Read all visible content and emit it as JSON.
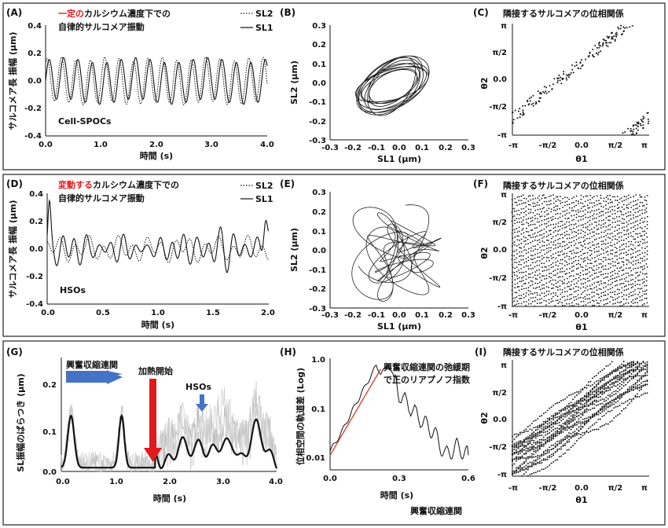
{
  "figure": {
    "panels": {
      "A": {
        "label": "(A)",
        "title_red": "一定の",
        "title_rest": "カルシウム濃度下での",
        "title_line2": "自律的サルコメア振動",
        "legend": [
          "SL2",
          "SL1"
        ],
        "ylabel": "サルコメア長 振幅 (μm)",
        "xlabel": "時間 (s)",
        "annotation": "Cell-SPOCs",
        "yticks": [
          "0.4",
          "0.2",
          "0.0",
          "-0.2",
          "-0.4"
        ],
        "xticks": [
          "0.0",
          "1.0",
          "2.0",
          "3.0",
          "4.0"
        ]
      },
      "B": {
        "label": "(B)",
        "ylabel": "SL2 (μm)",
        "xlabel": "SL1 (μm)",
        "yticks": [
          "0.3",
          "0.2",
          "0.1",
          "0.0",
          "-0.1",
          "-0.2",
          "-0.3"
        ],
        "xticks": [
          "-0.3",
          "-0.2",
          "-0.1",
          "0.0",
          "0.1",
          "0.2",
          "0.3"
        ]
      },
      "C": {
        "label": "(C)",
        "title": "隣接するサルコメアの位相関係",
        "ylabel": "θ2",
        "xlabel": "θ1",
        "yticks": [
          "π",
          "π/2",
          "0.0",
          "-π/2",
          "-π"
        ],
        "xticks": [
          "-π",
          "-π/2",
          "0.0",
          "π/2",
          "π"
        ]
      },
      "D": {
        "label": "(D)",
        "title_red": "変動する",
        "title_rest": "カルシウム濃度下での",
        "title_line2": "自律的サルコメア振動",
        "legend": [
          "SL2",
          "SL1"
        ],
        "ylabel": "サルコメア長 振幅 (μm)",
        "xlabel": "時間 (s)",
        "annotation": "HSOs",
        "yticks": [
          "0.4",
          "0.2",
          "0.0",
          "-0.2",
          "-0.4"
        ],
        "xticks": [
          "0.0",
          "0.5",
          "1.0",
          "1.5",
          "2.0"
        ]
      },
      "E": {
        "label": "(E)",
        "ylabel": "SL2 (μm)",
        "xlabel": "SL1 (μm)",
        "yticks": [
          "0.3",
          "0.2",
          "0.1",
          "0.0",
          "-0.1",
          "-0.2",
          "-0.3"
        ],
        "xticks": [
          "-0.3",
          "-0.2",
          "-0.1",
          "0.0",
          "0.1",
          "0.2",
          "0.3"
        ]
      },
      "F": {
        "label": "(F)",
        "title": "隣接するサルコメアの位相関係",
        "ylabel": "θ2",
        "xlabel": "θ1",
        "yticks": [
          "π",
          "π/2",
          "0.0",
          "-π/2",
          "-π"
        ],
        "xticks": [
          "-π",
          "-π/2",
          "0.0",
          "π/2",
          "π"
        ]
      },
      "G": {
        "label": "(G)",
        "ylabel": "SL振幅のばらつき (μm)",
        "xlabel": "時間 (s)",
        "annot_ecc": "興奮収縮連関",
        "annot_heat": "加熱開始",
        "annot_hso": "HSOs",
        "yticks": [
          "0.2",
          "0.1",
          "0.0"
        ],
        "xticks": [
          "0.0",
          "1.0",
          "2.0",
          "3.0",
          "4.0"
        ]
      },
      "H": {
        "label": "(H)",
        "ylabel": "位相空間の軌道差 (Log)",
        "xlabel": "時間 (s)",
        "annot_line1": "興奮収縮連関の弛緩期",
        "annot_line2": "で正のリアプノフ指数",
        "caption": "興奮収縮連関",
        "yticks": [
          "1.0",
          "0.1",
          "0.01"
        ],
        "xticks": [
          "0.0",
          "0.3",
          "0.6"
        ]
      },
      "I": {
        "label": "(I)",
        "title": "隣接するサルコメアの位相関係",
        "ylabel": "θ2",
        "xlabel": "θ1",
        "yticks": [
          "π",
          "π/2",
          "0.0",
          "-π/2",
          "-π"
        ],
        "xticks": [
          "-π",
          "-π/2",
          "0.0",
          "π/2",
          "π"
        ]
      }
    },
    "colors": {
      "accent_red": "#e0191f",
      "arrow_blue": "#4472c4",
      "line_dark": "#111111",
      "trace_gray": "#bdbdbd",
      "fit_red": "#d9352a"
    }
  },
  "chart_data": [
    {
      "id": "A",
      "type": "line",
      "xlabel": "時間 (s)",
      "ylabel": "サルコメア長 振幅 (μm)",
      "xlim": [
        0,
        4.0
      ],
      "ylim": [
        -0.4,
        0.4
      ],
      "grid": false,
      "legend": "top-right",
      "series": [
        {
          "name": "SL1",
          "style": "solid",
          "approx_period_s": 0.26,
          "approx_amplitude": 0.16
        },
        {
          "name": "SL2",
          "style": "dotted",
          "approx_period_s": 0.26,
          "approx_amplitude": 0.16
        }
      ]
    },
    {
      "id": "B",
      "type": "line",
      "xlabel": "SL1 (μm)",
      "ylabel": "SL2 (μm)",
      "xlim": [
        -0.3,
        0.3
      ],
      "ylim": [
        -0.3,
        0.3
      ],
      "shape": "closed quasi-elliptic limit cycle"
    },
    {
      "id": "C",
      "type": "scatter",
      "xlabel": "θ1",
      "ylabel": "θ2",
      "xlim": [
        "-π",
        "π"
      ],
      "ylim": [
        "-π",
        "π"
      ],
      "pattern": "diagonal band (phase locked)"
    },
    {
      "id": "D",
      "type": "line",
      "xlabel": "時間 (s)",
      "ylabel": "サルコメア長 振幅 (μm)",
      "xlim": [
        0,
        2.0
      ],
      "ylim": [
        -0.4,
        0.4
      ],
      "legend": "top-right",
      "series": [
        {
          "name": "SL1",
          "style": "solid"
        },
        {
          "name": "SL2",
          "style": "dotted"
        }
      ]
    },
    {
      "id": "E",
      "type": "line",
      "xlabel": "SL1 (μm)",
      "ylabel": "SL2 (μm)",
      "xlim": [
        -0.3,
        0.3
      ],
      "ylim": [
        -0.3,
        0.3
      ],
      "shape": "chaotic tangle"
    },
    {
      "id": "F",
      "type": "scatter",
      "xlabel": "θ1",
      "ylabel": "θ2",
      "xlim": [
        "-π",
        "π"
      ],
      "ylim": [
        "-π",
        "π"
      ],
      "pattern": "dense diagonal streaks"
    },
    {
      "id": "G",
      "type": "line",
      "xlabel": "時間 (s)",
      "ylabel": "SL振幅のばらつき (μm)",
      "xlim": [
        0,
        4.0
      ],
      "ylim": [
        0,
        0.25
      ],
      "series": [
        {
          "name": "mean",
          "style": "solid-black",
          "peaks": [
            [
              0.18,
              0.12
            ],
            [
              1.12,
              0.12
            ],
            [
              2.6,
              0.08
            ],
            [
              3.6,
              0.08
            ]
          ]
        },
        {
          "name": "individual",
          "style": "gray",
          "max": 0.23
        }
      ],
      "markers": [
        {
          "label": "加熱開始",
          "x": 1.7
        },
        {
          "label": "HSOs",
          "x": 2.6
        }
      ]
    },
    {
      "id": "H",
      "type": "line",
      "xlabel": "時間 (s)",
      "ylabel": "位相空間の軌道差 (Log)",
      "xlim": [
        0,
        0.6
      ],
      "ylim": [
        0.005,
        1.0
      ],
      "yscale": "log",
      "series": [
        {
          "name": "divergence",
          "points": [
            [
              0.0,
              0.012
            ],
            [
              0.05,
              0.03
            ],
            [
              0.1,
              0.09
            ],
            [
              0.15,
              0.25
            ],
            [
              0.2,
              0.7
            ],
            [
              0.22,
              0.5
            ],
            [
              0.26,
              0.7
            ],
            [
              0.3,
              0.18
            ],
            [
              0.4,
              0.05
            ],
            [
              0.45,
              0.03
            ],
            [
              0.5,
              0.01
            ],
            [
              0.55,
              0.015
            ],
            [
              0.6,
              0.01
            ]
          ]
        },
        {
          "name": "fit",
          "style": "red",
          "points": [
            [
              0.0,
              0.01
            ],
            [
              0.22,
              0.6
            ]
          ]
        }
      ]
    },
    {
      "id": "I",
      "type": "scatter",
      "xlabel": "θ1",
      "ylabel": "θ2",
      "xlim": [
        "-π",
        "π"
      ],
      "ylim": [
        "-π",
        "π"
      ],
      "pattern": "curved diagonal trajectories"
    }
  ]
}
